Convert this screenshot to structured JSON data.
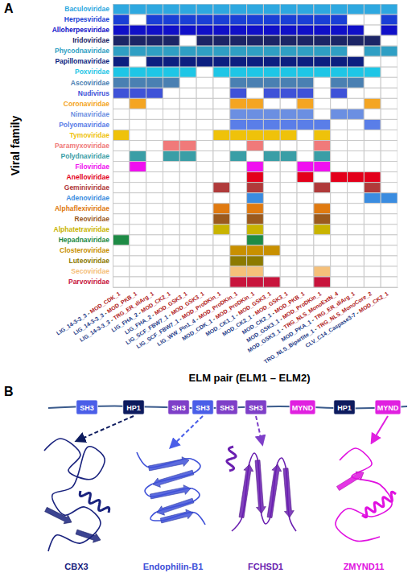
{
  "panels": [
    "A",
    "B"
  ],
  "chart_data": {
    "type": "heatmap",
    "x_label": "ELM pair (ELM1 – ELM2)",
    "y_label": "Viral family",
    "grid": true,
    "categories": [
      "LIG_14-3-3_3 - MOD_CDK_1",
      "LIG_14-3-3_3 - MOD_PKB_1",
      "LIG_14-3-3_3 - TRG_ER_diArg_1",
      "LIG_FHA_2 - MOD_CK2_1",
      "LIG_FHA_2 - MOD_GSK3_1",
      "LIG_SCF_FBW7_1 - MOD_GSK3_1",
      "LIG_SCF_FBW7_1 - MOD_ProDKin_1",
      "LIG_WW_Pin1_4 - MOD_ProDKin_1",
      "MOD_CDK_1 - MOD_ProDKin_1",
      "MOD_CK1_1 - MOD_GSK3_1",
      "MOD_CK2_1 - MOD_GSK3_1",
      "MOD_CK2_1 - MOD_PKB_1",
      "MOD_GSK3_1 - MOD_ProDKin_1",
      "MOD_GSK3_1 - TRG_NLS_MonoExtN_4",
      "MOD_PKA_1 - TRG_ER_diArg_1",
      "TRG_NLS_Bipartite_1 - TRG_NLS_MonoCore_2",
      "CLV_C14_Caspase3-7 - MOD_CK2_1"
    ],
    "series": [
      {
        "name": "Baculoviridae",
        "color": "#2ea8e0",
        "values": [
          1,
          1,
          1,
          1,
          1,
          1,
          1,
          1,
          1,
          1,
          1,
          1,
          1,
          1,
          1,
          1,
          1
        ]
      },
      {
        "name": "Herpesviridae",
        "color": "#1a3fd6",
        "values": [
          1,
          0,
          1,
          1,
          1,
          1,
          1,
          1,
          1,
          1,
          1,
          1,
          1,
          1,
          0,
          0,
          1
        ]
      },
      {
        "name": "Alloherpesviridae",
        "color": "#1010c8",
        "values": [
          1,
          1,
          1,
          1,
          1,
          1,
          1,
          1,
          1,
          1,
          1,
          1,
          1,
          1,
          1,
          0,
          1
        ]
      },
      {
        "name": "Iridoviridae",
        "color": "#1c2566",
        "values": [
          1,
          1,
          1,
          1,
          0,
          1,
          1,
          1,
          1,
          1,
          1,
          1,
          1,
          1,
          1,
          1,
          0
        ]
      },
      {
        "name": "Phycodnaviridae",
        "color": "#2f9fc4",
        "values": [
          1,
          1,
          1,
          1,
          1,
          1,
          1,
          1,
          1,
          1,
          1,
          1,
          1,
          1,
          0,
          1,
          1
        ]
      },
      {
        "name": "Papillomaviridae",
        "color": "#0c1f80",
        "values": [
          1,
          0,
          1,
          1,
          1,
          1,
          1,
          1,
          1,
          1,
          1,
          1,
          1,
          1,
          1,
          0,
          0
        ]
      },
      {
        "name": "Poxviridae",
        "color": "#1ec6e6",
        "values": [
          1,
          1,
          1,
          1,
          1,
          0,
          1,
          1,
          1,
          1,
          1,
          1,
          1,
          1,
          1,
          1,
          0
        ]
      },
      {
        "name": "Ascoviridae",
        "color": "#4a80b2",
        "values": [
          1,
          1,
          1,
          1,
          0,
          0,
          0,
          1,
          1,
          1,
          1,
          1,
          0,
          1,
          1,
          0,
          0
        ]
      },
      {
        "name": "Nudivirus",
        "color": "#3e52d8",
        "values": [
          1,
          1,
          1,
          0,
          0,
          0,
          0,
          1,
          0,
          1,
          1,
          1,
          0,
          1,
          0,
          0,
          0
        ]
      },
      {
        "name": "Coronaviridae",
        "color": "#f4a522",
        "values": [
          0,
          1,
          0,
          0,
          0,
          0,
          0,
          1,
          1,
          0,
          0,
          1,
          0,
          0,
          0,
          1,
          0
        ]
      },
      {
        "name": "Nimaviridae",
        "color": "#6b8fe2",
        "values": [
          0,
          0,
          0,
          0,
          0,
          0,
          0,
          1,
          1,
          1,
          1,
          1,
          0,
          1,
          1,
          0,
          0
        ]
      },
      {
        "name": "Polyomaviridae",
        "color": "#5a7ee8",
        "values": [
          0,
          0,
          0,
          0,
          0,
          0,
          0,
          1,
          1,
          1,
          1,
          1,
          1,
          0,
          0,
          1,
          0
        ]
      },
      {
        "name": "Tymoviridae",
        "color": "#efc20a",
        "values": [
          1,
          0,
          0,
          0,
          0,
          0,
          1,
          1,
          1,
          1,
          1,
          0,
          1,
          0,
          0,
          0,
          0
        ]
      },
      {
        "name": "Paramyxoviridae",
        "color": "#f07a7a",
        "values": [
          0,
          0,
          0,
          1,
          1,
          0,
          0,
          0,
          1,
          0,
          0,
          0,
          1,
          0,
          0,
          0,
          0
        ]
      },
      {
        "name": "Polydnaviridae",
        "color": "#3a9ea6",
        "values": [
          0,
          1,
          0,
          1,
          1,
          0,
          0,
          1,
          0,
          1,
          1,
          0,
          1,
          0,
          0,
          0,
          0
        ]
      },
      {
        "name": "Filoviridae",
        "color": "#f010f0",
        "values": [
          0,
          1,
          0,
          0,
          0,
          0,
          0,
          0,
          1,
          0,
          0,
          1,
          1,
          0,
          0,
          0,
          0
        ]
      },
      {
        "name": "Anelloviridae",
        "color": "#e3001b",
        "values": [
          0,
          0,
          0,
          0,
          0,
          0,
          0,
          0,
          1,
          0,
          0,
          1,
          0,
          1,
          1,
          1,
          0
        ]
      },
      {
        "name": "Geminiviridae",
        "color": "#b03a3a",
        "values": [
          0,
          0,
          0,
          0,
          0,
          0,
          1,
          0,
          1,
          0,
          0,
          0,
          1,
          0,
          0,
          1,
          0
        ]
      },
      {
        "name": "Adenoviridae",
        "color": "#3a8ce0",
        "values": [
          0,
          0,
          0,
          0,
          0,
          0,
          0,
          0,
          1,
          0,
          0,
          0,
          0,
          0,
          0,
          1,
          1
        ]
      },
      {
        "name": "Alphaflexiviridae",
        "color": "#e07a10",
        "values": [
          0,
          0,
          0,
          0,
          0,
          0,
          1,
          0,
          1,
          0,
          0,
          0,
          1,
          0,
          0,
          0,
          0
        ]
      },
      {
        "name": "Reoviridae",
        "color": "#9b5a1e",
        "values": [
          0,
          0,
          0,
          0,
          0,
          0,
          1,
          0,
          1,
          0,
          0,
          0,
          1,
          0,
          0,
          0,
          0
        ]
      },
      {
        "name": "Alphatetraviridae",
        "color": "#c9b400",
        "values": [
          0,
          0,
          0,
          0,
          0,
          0,
          1,
          0,
          1,
          0,
          0,
          0,
          1,
          0,
          0,
          0,
          0
        ]
      },
      {
        "name": "Hepadnaviridae",
        "color": "#1e8b45",
        "values": [
          1,
          0,
          0,
          0,
          0,
          0,
          0,
          0,
          1,
          0,
          0,
          0,
          0,
          0,
          0,
          0,
          0
        ]
      },
      {
        "name": "Closteroviridae",
        "color": "#c89000",
        "values": [
          0,
          0,
          0,
          0,
          0,
          0,
          0,
          1,
          1,
          1,
          0,
          0,
          0,
          0,
          0,
          0,
          0
        ]
      },
      {
        "name": "Luteoviridae",
        "color": "#8c7a00",
        "values": [
          0,
          0,
          0,
          0,
          0,
          0,
          0,
          1,
          1,
          0,
          0,
          0,
          0,
          0,
          0,
          0,
          0
        ]
      },
      {
        "name": "Secoviridae",
        "color": "#f5c07a",
        "values": [
          0,
          0,
          0,
          0,
          0,
          0,
          0,
          1,
          1,
          0,
          0,
          0,
          1,
          0,
          0,
          0,
          0
        ]
      },
      {
        "name": "Parvoviridae",
        "color": "#c8143c",
        "values": [
          0,
          0,
          0,
          0,
          0,
          0,
          0,
          1,
          1,
          1,
          0,
          0,
          1,
          0,
          0,
          0,
          0
        ]
      }
    ]
  },
  "diagram": {
    "domains": [
      {
        "label": "SH3",
        "color": "#4a5ee8"
      },
      {
        "label": "HP1",
        "color": "#0d1b5e"
      },
      {
        "label": "SH3",
        "color": "#7e3fc8"
      },
      {
        "label": "SH3",
        "color": "#4a5ee8"
      },
      {
        "label": "SH3",
        "color": "#7e3fc8"
      },
      {
        "label": "SH3",
        "color": "#7e3fc8"
      },
      {
        "label": "MYND",
        "color": "#e020e0"
      },
      {
        "label": "HP1",
        "color": "#0d1b5e"
      },
      {
        "label": "MYND",
        "color": "#e020e0"
      }
    ],
    "structures": [
      {
        "label": "CBX3",
        "color": "#1a237e"
      },
      {
        "label": "Endophilin-B1",
        "color": "#3f51d8"
      },
      {
        "label": "FCHSD1",
        "color": "#6a1fb0"
      },
      {
        "label": "ZMYND11",
        "color": "#e010e0"
      }
    ]
  }
}
